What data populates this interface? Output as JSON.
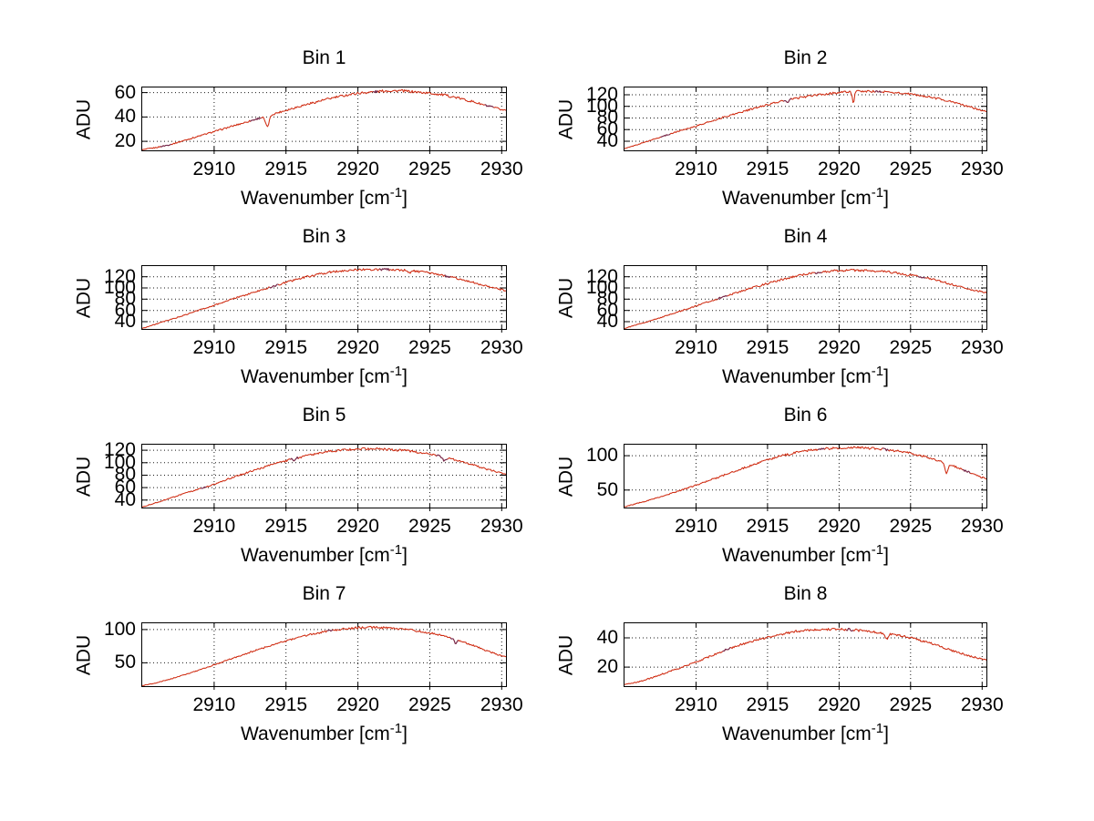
{
  "figure": {
    "background": "#ffffff"
  },
  "chart_data": {
    "type": "line",
    "grid": true,
    "legend": false,
    "line_color": "#cf2b11",
    "line_dark_color": "#6e2a52",
    "grid_color": "#1a1a1a",
    "axis_color": "#000000",
    "ylabel": "ADU",
    "xlabel": "Wavenumber [cm⁻¹]",
    "xlabel_pre": "Wavenumber [cm",
    "xlabel_sup": "-1",
    "xlabel_post": "]",
    "xlim": [
      2905,
      2930.3
    ],
    "xticks": [
      2910,
      2915,
      2920,
      2925,
      2930
    ],
    "subplots": [
      {
        "title": "Bin 1",
        "yticks": [
          20,
          40,
          60
        ],
        "ylim": [
          12.6,
          64.2
        ],
        "seed": 1,
        "anchors": [
          [
            2905,
            13
          ],
          [
            2906,
            15
          ],
          [
            2907,
            17.5
          ],
          [
            2908,
            21
          ],
          [
            2909,
            24.5
          ],
          [
            2910,
            28
          ],
          [
            2911,
            31.5
          ],
          [
            2912,
            35
          ],
          [
            2913,
            38.5
          ],
          [
            2914,
            42
          ],
          [
            2915,
            45.5
          ],
          [
            2916,
            49
          ],
          [
            2917,
            52
          ],
          [
            2918,
            55
          ],
          [
            2919,
            57.5
          ],
          [
            2920,
            59.5
          ],
          [
            2921,
            60.5
          ],
          [
            2922,
            61.5
          ],
          [
            2923,
            61.5
          ],
          [
            2924,
            60.5
          ],
          [
            2925,
            59.5
          ],
          [
            2926,
            58
          ],
          [
            2927,
            55.5
          ],
          [
            2928,
            52.5
          ],
          [
            2929,
            49
          ],
          [
            2930,
            46
          ],
          [
            2930.3,
            45.5
          ]
        ],
        "dips": [
          [
            2913.7,
            9,
            0.18
          ]
        ],
        "dark_spans": [
          [
            2906.2,
            2907.0
          ],
          [
            2912.5,
            2913.3
          ],
          [
            2921.0,
            2921.4
          ],
          [
            2928.8,
            2929.5
          ]
        ]
      },
      {
        "title": "Bin 2",
        "yticks": [
          40,
          60,
          80,
          100,
          120
        ],
        "ylim": [
          24.3,
          132.5
        ],
        "seed": 2,
        "anchors": [
          [
            2905,
            27
          ],
          [
            2906,
            35
          ],
          [
            2907,
            43
          ],
          [
            2908,
            51
          ],
          [
            2909,
            59
          ],
          [
            2910,
            66
          ],
          [
            2911,
            74
          ],
          [
            2912,
            82
          ],
          [
            2913,
            89
          ],
          [
            2914,
            96
          ],
          [
            2915,
            103
          ],
          [
            2916,
            109
          ],
          [
            2917,
            114
          ],
          [
            2918,
            118
          ],
          [
            2919,
            121
          ],
          [
            2920,
            124
          ],
          [
            2921,
            125.5
          ],
          [
            2922,
            126
          ],
          [
            2923,
            125
          ],
          [
            2924,
            123.5
          ],
          [
            2925,
            121
          ],
          [
            2926,
            117.5
          ],
          [
            2927,
            113
          ],
          [
            2928,
            107
          ],
          [
            2929,
            100
          ],
          [
            2930,
            93
          ],
          [
            2930.3,
            91.5
          ]
        ],
        "dips": [
          [
            2921.0,
            19,
            0.1
          ],
          [
            2916.4,
            5,
            0.12
          ]
        ],
        "dark_spans": [
          [
            2907.5,
            2908.2
          ],
          [
            2916.1,
            2916.7
          ],
          [
            2922.5,
            2923.0
          ]
        ]
      },
      {
        "title": "Bin 3",
        "yticks": [
          40,
          60,
          80,
          100,
          120
        ],
        "ylim": [
          27,
          139
        ],
        "seed": 3,
        "anchors": [
          [
            2905,
            28
          ],
          [
            2906,
            36
          ],
          [
            2907,
            44
          ],
          [
            2908,
            52
          ],
          [
            2909,
            61
          ],
          [
            2910,
            69
          ],
          [
            2911,
            78
          ],
          [
            2912,
            86
          ],
          [
            2913,
            94
          ],
          [
            2914,
            102
          ],
          [
            2915,
            110
          ],
          [
            2916,
            117
          ],
          [
            2917,
            123
          ],
          [
            2918,
            128
          ],
          [
            2919,
            131
          ],
          [
            2920,
            132.5
          ],
          [
            2921,
            133
          ],
          [
            2922,
            133
          ],
          [
            2923,
            132
          ],
          [
            2924,
            130
          ],
          [
            2925,
            126.5
          ],
          [
            2926,
            122
          ],
          [
            2927,
            116.5
          ],
          [
            2928,
            110
          ],
          [
            2929,
            103
          ],
          [
            2930,
            97
          ],
          [
            2930.3,
            95.5
          ]
        ],
        "dips": [
          [
            2923.6,
            4,
            0.1
          ]
        ],
        "dark_spans": [
          [
            2913.8,
            2914.5
          ],
          [
            2921.5,
            2922.2
          ],
          [
            2926.0,
            2926.5
          ]
        ]
      },
      {
        "title": "Bin 4",
        "yticks": [
          40,
          60,
          80,
          100,
          120
        ],
        "ylim": [
          27,
          139
        ],
        "seed": 4,
        "anchors": [
          [
            2905,
            28
          ],
          [
            2906,
            35.5
          ],
          [
            2907,
            43
          ],
          [
            2908,
            51
          ],
          [
            2909,
            59.5
          ],
          [
            2910,
            68
          ],
          [
            2911,
            76.5
          ],
          [
            2912,
            85
          ],
          [
            2913,
            93
          ],
          [
            2914,
            101
          ],
          [
            2915,
            108
          ],
          [
            2916,
            115
          ],
          [
            2917,
            121
          ],
          [
            2918,
            126
          ],
          [
            2919,
            129
          ],
          [
            2920,
            131
          ],
          [
            2921,
            131.5
          ],
          [
            2922,
            131
          ],
          [
            2923,
            129.5
          ],
          [
            2924,
            127
          ],
          [
            2925,
            123.5
          ],
          [
            2926,
            118.5
          ],
          [
            2927,
            112.5
          ],
          [
            2928,
            105.5
          ],
          [
            2929,
            98.5
          ],
          [
            2930,
            93
          ],
          [
            2930.3,
            92
          ]
        ],
        "dips": [
          [
            2924.8,
            4,
            0.12
          ]
        ],
        "dark_spans": [
          [
            2911.5,
            2912.2
          ],
          [
            2918.3,
            2918.8
          ],
          [
            2925.5,
            2926.1
          ]
        ]
      },
      {
        "title": "Bin 5",
        "yticks": [
          40,
          60,
          80,
          100,
          120
        ],
        "ylim": [
          28,
          129
        ],
        "seed": 5,
        "anchors": [
          [
            2905,
            29
          ],
          [
            2906,
            36
          ],
          [
            2907,
            43.5
          ],
          [
            2908,
            51
          ],
          [
            2909,
            58
          ],
          [
            2910,
            65
          ],
          [
            2911,
            74
          ],
          [
            2912,
            82
          ],
          [
            2913,
            89.5
          ],
          [
            2914,
            96.5
          ],
          [
            2915,
            103
          ],
          [
            2916,
            109
          ],
          [
            2917,
            114
          ],
          [
            2918,
            118
          ],
          [
            2919,
            120.5
          ],
          [
            2920,
            122
          ],
          [
            2921,
            122.5
          ],
          [
            2922,
            121.5
          ],
          [
            2923,
            120
          ],
          [
            2924,
            117.5
          ],
          [
            2925,
            114
          ],
          [
            2926,
            109
          ],
          [
            2927,
            103
          ],
          [
            2928,
            96.5
          ],
          [
            2929,
            89.5
          ],
          [
            2930,
            83.5
          ],
          [
            2930.3,
            82
          ]
        ],
        "dips": [
          [
            2926.0,
            6,
            0.15
          ],
          [
            2915.6,
            3,
            0.1
          ]
        ],
        "dark_spans": [
          [
            2909.0,
            2909.5
          ],
          [
            2915.3,
            2915.9
          ],
          [
            2925.4,
            2926.3
          ]
        ]
      },
      {
        "title": "Bin 6",
        "yticks": [
          50,
          100
        ],
        "ylim": [
          24.5,
          116
        ],
        "seed": 6,
        "anchors": [
          [
            2905,
            25.5
          ],
          [
            2906,
            31
          ],
          [
            2907,
            37
          ],
          [
            2908,
            43.5
          ],
          [
            2909,
            50
          ],
          [
            2910,
            57
          ],
          [
            2911,
            64.5
          ],
          [
            2912,
            72
          ],
          [
            2913,
            79.5
          ],
          [
            2914,
            87
          ],
          [
            2915,
            94
          ],
          [
            2916,
            100
          ],
          [
            2917,
            104.5
          ],
          [
            2918,
            108
          ],
          [
            2919,
            110
          ],
          [
            2920,
            111.5
          ],
          [
            2921,
            112
          ],
          [
            2922,
            111
          ],
          [
            2923,
            109.5
          ],
          [
            2924,
            107
          ],
          [
            2925,
            103.5
          ],
          [
            2926,
            98.5
          ],
          [
            2927,
            92.5
          ],
          [
            2928,
            85
          ],
          [
            2929,
            76.5
          ],
          [
            2930,
            68
          ],
          [
            2930.3,
            66.5
          ]
        ],
        "dips": [
          [
            2927.5,
            14,
            0.15
          ]
        ],
        "dark_spans": [
          [
            2918.5,
            2919.0
          ],
          [
            2923.0,
            2923.5
          ],
          [
            2928.6,
            2929.2
          ]
        ]
      },
      {
        "title": "Bin 7",
        "yticks": [
          50,
          100
        ],
        "ylim": [
          15,
          109.5
        ],
        "seed": 7,
        "anchors": [
          [
            2905,
            15.5
          ],
          [
            2906,
            20
          ],
          [
            2907,
            26
          ],
          [
            2908,
            32.5
          ],
          [
            2909,
            39.5
          ],
          [
            2910,
            47
          ],
          [
            2911,
            54.5
          ],
          [
            2912,
            62
          ],
          [
            2913,
            69.5
          ],
          [
            2914,
            76.5
          ],
          [
            2915,
            83
          ],
          [
            2916,
            89
          ],
          [
            2917,
            94
          ],
          [
            2918,
            98
          ],
          [
            2919,
            101
          ],
          [
            2920,
            103
          ],
          [
            2921,
            103.5
          ],
          [
            2922,
            102.5
          ],
          [
            2923,
            101
          ],
          [
            2924,
            98.5
          ],
          [
            2925,
            95
          ],
          [
            2926,
            90
          ],
          [
            2927,
            84
          ],
          [
            2928,
            76.5
          ],
          [
            2929,
            68
          ],
          [
            2930,
            60.5
          ],
          [
            2930.3,
            59
          ]
        ],
        "dips": [
          [
            2926.8,
            7,
            0.12
          ]
        ],
        "dark_spans": [
          [
            2917.8,
            2918.3
          ],
          [
            2926.4,
            2927.0
          ]
        ]
      },
      {
        "title": "Bin 8",
        "yticks": [
          20,
          40
        ],
        "ylim": [
          7,
          50
        ],
        "seed": 8,
        "anchors": [
          [
            2905,
            8
          ],
          [
            2906,
            10
          ],
          [
            2907,
            13
          ],
          [
            2908,
            16.5
          ],
          [
            2909,
            20
          ],
          [
            2910,
            23.5
          ],
          [
            2911,
            27.5
          ],
          [
            2912,
            31.5
          ],
          [
            2913,
            35
          ],
          [
            2914,
            38
          ],
          [
            2915,
            40.5
          ],
          [
            2916,
            42.5
          ],
          [
            2917,
            44.5
          ],
          [
            2918,
            45.5
          ],
          [
            2919,
            46
          ],
          [
            2920,
            46
          ],
          [
            2921,
            45.5
          ],
          [
            2922,
            44.5
          ],
          [
            2923,
            43.5
          ],
          [
            2924,
            42
          ],
          [
            2925,
            40
          ],
          [
            2926,
            37.5
          ],
          [
            2927,
            34.5
          ],
          [
            2928,
            31
          ],
          [
            2929,
            28
          ],
          [
            2930,
            25.5
          ],
          [
            2930.3,
            25
          ]
        ],
        "dips": [
          [
            2923.3,
            4,
            0.15
          ]
        ],
        "dark_spans": [
          [
            2911.8,
            2912.4
          ],
          [
            2920.5,
            2921.0
          ]
        ]
      }
    ]
  }
}
